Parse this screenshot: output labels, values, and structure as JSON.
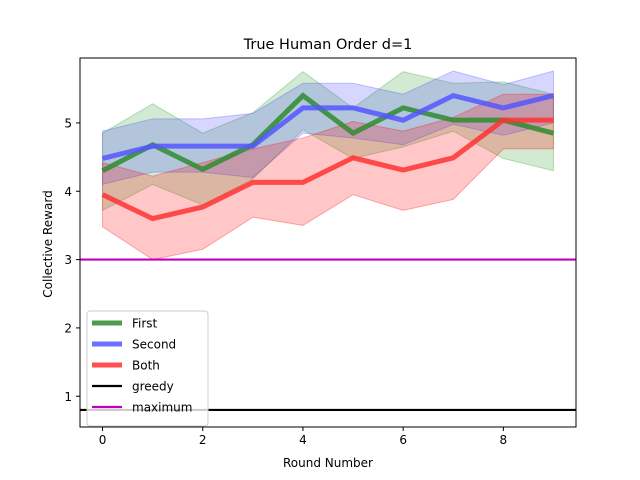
{
  "chart_data": {
    "type": "line",
    "title": "True Human Order d=1",
    "xlabel": "Round Number",
    "ylabel": "Collective Reward",
    "xlim": [
      -0.45,
      9.45
    ],
    "ylim": [
      0.55,
      5.95
    ],
    "xticks": [
      0,
      2,
      4,
      6,
      8
    ],
    "yticks": [
      1,
      2,
      3,
      4,
      5
    ],
    "grid": false,
    "legend_position": "lower-left",
    "x": [
      0,
      1,
      2,
      3,
      4,
      5,
      6,
      7,
      8,
      9
    ],
    "series": [
      {
        "name": "First",
        "color": "#2e8b2e",
        "band_color": "#2ca02c",
        "values": [
          4.3,
          4.68,
          4.32,
          4.68,
          5.4,
          4.85,
          5.22,
          5.04,
          5.04,
          4.85
        ],
        "lower": [
          3.72,
          4.1,
          3.8,
          4.18,
          4.9,
          4.48,
          4.65,
          4.88,
          4.48,
          4.3
        ],
        "upper": [
          4.85,
          5.28,
          4.85,
          5.15,
          5.75,
          5.22,
          5.75,
          5.58,
          5.6,
          5.42
        ]
      },
      {
        "name": "Second",
        "color": "#5555ff",
        "band_color": "#4444ff",
        "values": [
          4.48,
          4.66,
          4.66,
          4.66,
          5.22,
          5.22,
          5.04,
          5.4,
          5.22,
          5.4
        ],
        "lower": [
          4.1,
          4.28,
          4.28,
          4.2,
          4.85,
          4.78,
          4.68,
          4.98,
          4.82,
          5.0
        ],
        "upper": [
          4.88,
          5.06,
          5.06,
          5.14,
          5.58,
          5.58,
          5.42,
          5.76,
          5.56,
          5.76
        ]
      },
      {
        "name": "Both",
        "color": "#ff3333",
        "band_color": "#ff0000",
        "values": [
          3.95,
          3.6,
          3.77,
          4.13,
          4.13,
          4.49,
          4.31,
          4.49,
          5.04,
          5.04
        ],
        "lower": [
          3.48,
          3.0,
          3.15,
          3.62,
          3.5,
          3.95,
          3.72,
          3.88,
          4.62,
          4.62
        ],
        "upper": [
          4.42,
          4.22,
          4.42,
          4.62,
          4.78,
          5.02,
          4.88,
          5.08,
          5.42,
          5.42
        ]
      }
    ],
    "hlines": [
      {
        "name": "greedy",
        "value": 0.8,
        "color": "#000000"
      },
      {
        "name": "maximum",
        "value": 3.0,
        "color": "#bf00bf"
      }
    ]
  }
}
